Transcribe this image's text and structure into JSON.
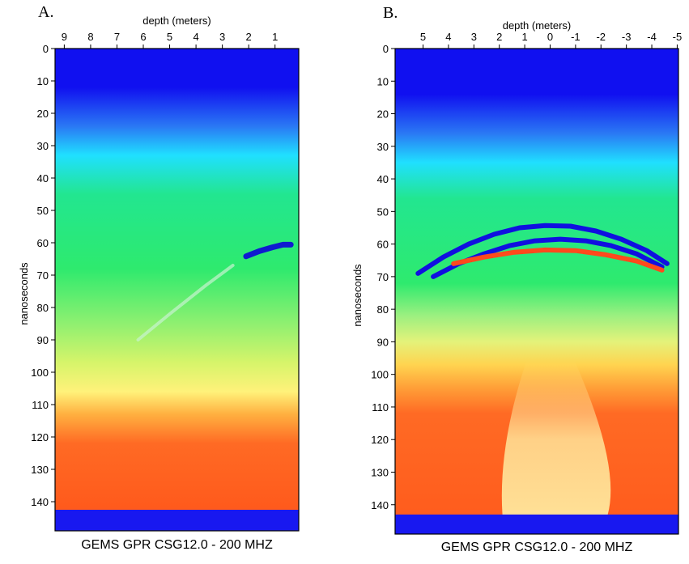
{
  "chart_data": [
    {
      "type": "heatmap",
      "panel_label": "A.",
      "xlabel": "depth (meters)",
      "ylabel": "nanoseconds",
      "caption": "GEMS GPR CSG12.0 - 200 MHZ",
      "x_ticks": [
        "9",
        "8",
        "7",
        "6",
        "5",
        "4",
        "3",
        "2",
        "1"
      ],
      "x_tick_values": [
        9,
        8,
        7,
        6,
        5,
        4,
        3,
        2,
        1
      ],
      "xlim": [
        9.35,
        0.1
      ],
      "y_ticks": [
        "0",
        "10",
        "20",
        "30",
        "40",
        "50",
        "60",
        "70",
        "80",
        "90",
        "100",
        "110",
        "120",
        "130",
        "140"
      ],
      "y_tick_values": [
        0,
        10,
        20,
        30,
        40,
        50,
        60,
        70,
        80,
        90,
        100,
        110,
        120,
        130,
        140
      ],
      "ylim": [
        0,
        149
      ],
      "color_bands": [
        {
          "t": 0,
          "color": "#1010f0"
        },
        {
          "t": 12,
          "color": "#1010f0"
        },
        {
          "t": 24,
          "color": "#2a78f4"
        },
        {
          "t": 33,
          "color": "#20e0ff"
        },
        {
          "t": 45,
          "color": "#22e690"
        },
        {
          "t": 68,
          "color": "#2eea6e"
        },
        {
          "t": 85,
          "color": "#8ff070"
        },
        {
          "t": 97,
          "color": "#d6f46a"
        },
        {
          "t": 106,
          "color": "#fff27a"
        },
        {
          "t": 113,
          "color": "#ffb040"
        },
        {
          "t": 122,
          "color": "#ff6a24"
        },
        {
          "t": 142,
          "color": "#ff5a1c"
        }
      ],
      "bottom_band": {
        "t_start": 142.5,
        "color": "#1818f0"
      },
      "events": [
        {
          "kind": "reflection",
          "x": [
            2.1,
            1.6,
            1.1,
            0.7,
            0.4
          ],
          "t": [
            64.2,
            62.6,
            61.4,
            60.6,
            60.6
          ],
          "color": "#0f1ad0"
        },
        {
          "kind": "faint",
          "x": [
            6.2,
            5.0,
            3.6,
            2.6
          ],
          "t": [
            90,
            82,
            73,
            67
          ],
          "color": "#c8f2d0"
        }
      ]
    },
    {
      "type": "heatmap",
      "panel_label": "B.",
      "xlabel": "depth (meters)",
      "ylabel": "nanoseconds",
      "caption": "GEMS GPR CSG12.0 - 200 MHZ",
      "x_ticks": [
        "5",
        "4",
        "3",
        "2",
        "1",
        "0",
        "-1",
        "-2",
        "-3",
        "-4",
        "-5"
      ],
      "x_tick_values": [
        5,
        4,
        3,
        2,
        1,
        0,
        -1,
        -2,
        -3,
        -4,
        -5
      ],
      "xlim": [
        6.1,
        -5.05
      ],
      "y_ticks": [
        "0",
        "10",
        "20",
        "30",
        "40",
        "50",
        "60",
        "70",
        "80",
        "90",
        "100",
        "110",
        "120",
        "130",
        "140"
      ],
      "y_tick_values": [
        0,
        10,
        20,
        30,
        40,
        50,
        60,
        70,
        80,
        90,
        100,
        110,
        120,
        130,
        140
      ],
      "ylim": [
        0,
        149
      ],
      "color_bands": [
        {
          "t": 0,
          "color": "#1010f0"
        },
        {
          "t": 14,
          "color": "#1010f0"
        },
        {
          "t": 26,
          "color": "#2a78f4"
        },
        {
          "t": 35,
          "color": "#20e0ff"
        },
        {
          "t": 46,
          "color": "#22e690"
        },
        {
          "t": 72,
          "color": "#2eea6e"
        },
        {
          "t": 82,
          "color": "#9cf080"
        },
        {
          "t": 90,
          "color": "#e4f27a"
        },
        {
          "t": 97,
          "color": "#ffd450"
        },
        {
          "t": 104,
          "color": "#ffa038"
        },
        {
          "t": 112,
          "color": "#ff6a24"
        },
        {
          "t": 149,
          "color": "#ff5a1c"
        }
      ],
      "bottom_band": {
        "t_start": 143,
        "color": "#1818f0"
      },
      "events": [
        {
          "kind": "reflection",
          "x": [
            5.2,
            4.2,
            3.2,
            2.2,
            1.2,
            0.2,
            -0.8,
            -1.8,
            -2.8,
            -3.8,
            -4.6
          ],
          "t": [
            69,
            64,
            60,
            57,
            55,
            54.3,
            54.5,
            56,
            58.5,
            62,
            66
          ],
          "color": "#1010e0"
        },
        {
          "kind": "reflection",
          "x": [
            4.6,
            3.6,
            2.6,
            1.6,
            0.6,
            -0.4,
            -1.4,
            -2.4,
            -3.4,
            -4.4
          ],
          "t": [
            70,
            66,
            63,
            60.5,
            59,
            58.5,
            59,
            60.5,
            63,
            67
          ],
          "color": "#1010e0"
        },
        {
          "kind": "reflection",
          "x": [
            3.8,
            2.6,
            1.4,
            0.2,
            -1.0,
            -2.2,
            -3.4,
            -4.4
          ],
          "t": [
            66,
            64,
            62.5,
            61.8,
            62,
            63.3,
            65.2,
            68
          ],
          "color": "#ff4a1c"
        }
      ],
      "fan": {
        "apex_x": 0.3,
        "apex_t": 96,
        "bottom_left_x": 1.8,
        "bottom_right_x": -1.9,
        "color": "#fff4a8"
      }
    }
  ]
}
